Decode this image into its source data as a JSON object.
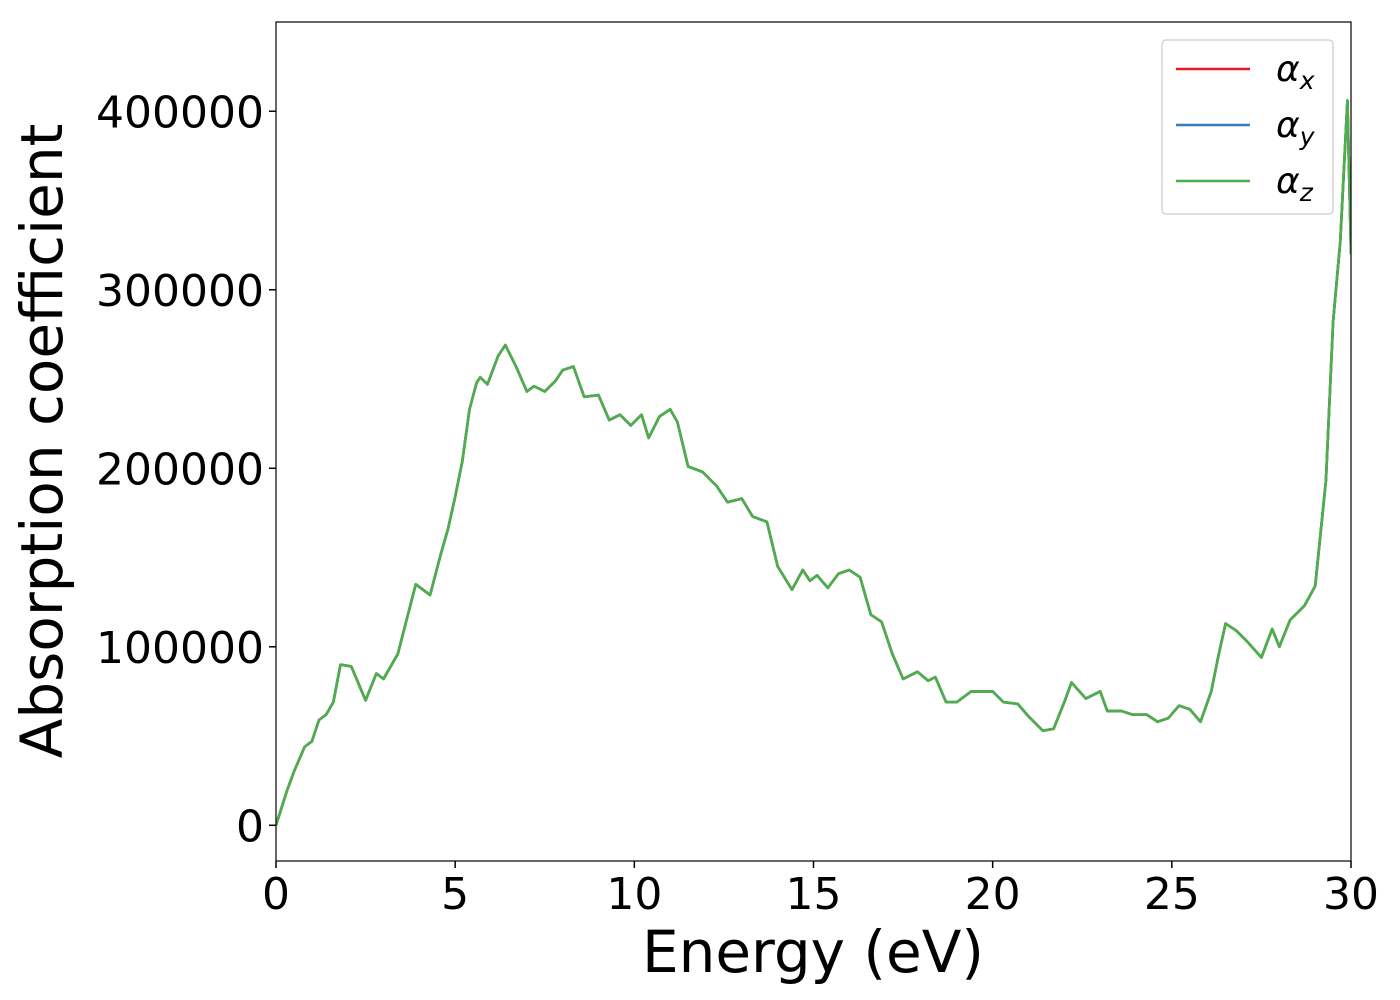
{
  "chart_data": {
    "type": "line",
    "xlabel": "Energy (eV)",
    "ylabel": "Absorption coefficient",
    "xlim": [
      0,
      30
    ],
    "ylim": [
      -20000,
      450000
    ],
    "xticks": [
      0,
      5,
      10,
      15,
      20,
      25,
      30
    ],
    "yticks": [
      0,
      100000,
      200000,
      300000,
      400000
    ],
    "legend": "upper right",
    "x": [
      0,
      0.3,
      0.5,
      0.8,
      1.0,
      1.2,
      1.4,
      1.6,
      1.8,
      2.1,
      2.5,
      2.8,
      3.0,
      3.4,
      3.9,
      4.1,
      4.3,
      4.6,
      4.8,
      5.0,
      5.2,
      5.4,
      5.6,
      5.7,
      5.9,
      6.2,
      6.4,
      6.7,
      7.0,
      7.2,
      7.5,
      7.8,
      8.0,
      8.3,
      8.6,
      9.0,
      9.3,
      9.6,
      9.9,
      10.2,
      10.4,
      10.7,
      11.0,
      11.2,
      11.5,
      11.9,
      12.3,
      12.6,
      13.0,
      13.3,
      13.7,
      14.0,
      14.4,
      14.7,
      14.9,
      15.1,
      15.4,
      15.7,
      16.0,
      16.3,
      16.6,
      16.9,
      17.2,
      17.5,
      17.9,
      18.2,
      18.4,
      18.7,
      19.0,
      19.4,
      19.7,
      20.0,
      20.3,
      20.7,
      21.0,
      21.4,
      21.7,
      22.0,
      22.2,
      22.6,
      23.0,
      23.2,
      23.6,
      23.9,
      24.3,
      24.6,
      24.9,
      25.2,
      25.5,
      25.8,
      26.1,
      26.3,
      26.5,
      26.8,
      27.1,
      27.5,
      27.8,
      28.0,
      28.3,
      28.7,
      29.0,
      29.3,
      29.5,
      29.7,
      29.9,
      30.0
    ],
    "series": [
      {
        "name": "αx",
        "color": "#e41a1c",
        "values": [
          0,
          19000,
          30000,
          44000,
          47000,
          59000,
          62000,
          69000,
          90000,
          89000,
          70000,
          85000,
          82000,
          96000,
          135000,
          132000,
          129000,
          152000,
          166000,
          184000,
          204000,
          233000,
          248000,
          251000,
          247000,
          263000,
          269000,
          257000,
          243000,
          246000,
          243000,
          249000,
          255000,
          257000,
          240000,
          241000,
          227000,
          230000,
          224000,
          230000,
          217000,
          229000,
          233000,
          226000,
          201000,
          198000,
          190000,
          181000,
          183000,
          173000,
          170000,
          145000,
          132000,
          143000,
          137000,
          140000,
          133000,
          141000,
          143000,
          139000,
          118000,
          114000,
          96000,
          82000,
          86000,
          81000,
          83000,
          69000,
          69000,
          75000,
          75000,
          75000,
          69000,
          68000,
          61000,
          53000,
          54000,
          69000,
          80000,
          71000,
          75000,
          64000,
          64000,
          62000,
          62000,
          58000,
          60000,
          67000,
          65000,
          58000,
          75000,
          95000,
          113000,
          109000,
          103000,
          94000,
          110000,
          100000,
          115000,
          123000,
          134000,
          193000,
          282000,
          327000,
          406000,
          320000
        ]
      },
      {
        "name": "αy",
        "color": "#377eb8",
        "values": [
          0,
          19000,
          30000,
          44000,
          47000,
          59000,
          62000,
          69000,
          90000,
          89000,
          70000,
          85000,
          82000,
          96000,
          135000,
          132000,
          129000,
          152000,
          166000,
          184000,
          204000,
          233000,
          248000,
          251000,
          247000,
          263000,
          269000,
          257000,
          243000,
          246000,
          243000,
          249000,
          255000,
          257000,
          240000,
          241000,
          227000,
          230000,
          224000,
          230000,
          217000,
          229000,
          233000,
          226000,
          201000,
          198000,
          190000,
          181000,
          183000,
          173000,
          170000,
          145000,
          132000,
          143000,
          137000,
          140000,
          133000,
          141000,
          143000,
          139000,
          118000,
          114000,
          96000,
          82000,
          86000,
          81000,
          83000,
          69000,
          69000,
          75000,
          75000,
          75000,
          69000,
          68000,
          61000,
          53000,
          54000,
          69000,
          80000,
          71000,
          75000,
          64000,
          64000,
          62000,
          62000,
          58000,
          60000,
          67000,
          65000,
          58000,
          75000,
          95000,
          113000,
          109000,
          103000,
          94000,
          110000,
          100000,
          115000,
          123000,
          134000,
          193000,
          282000,
          327000,
          406000,
          320000
        ]
      },
      {
        "name": "αz",
        "color": "#4daf4a",
        "values": [
          0,
          19000,
          30000,
          44000,
          47000,
          59000,
          62000,
          69000,
          90000,
          89000,
          70000,
          85000,
          82000,
          96000,
          135000,
          132000,
          129000,
          152000,
          166000,
          184000,
          204000,
          233000,
          248000,
          251000,
          247000,
          263000,
          269000,
          257000,
          243000,
          246000,
          243000,
          249000,
          255000,
          257000,
          240000,
          241000,
          227000,
          230000,
          224000,
          230000,
          217000,
          229000,
          233000,
          226000,
          201000,
          198000,
          190000,
          181000,
          183000,
          173000,
          170000,
          145000,
          132000,
          143000,
          137000,
          140000,
          133000,
          141000,
          143000,
          139000,
          118000,
          114000,
          96000,
          82000,
          86000,
          81000,
          83000,
          69000,
          69000,
          75000,
          75000,
          75000,
          69000,
          68000,
          61000,
          53000,
          54000,
          69000,
          80000,
          71000,
          75000,
          64000,
          64000,
          62000,
          62000,
          58000,
          60000,
          67000,
          65000,
          58000,
          75000,
          95000,
          113000,
          109000,
          103000,
          94000,
          110000,
          100000,
          115000,
          123000,
          134000,
          193000,
          282000,
          327000,
          406000,
          320000
        ]
      }
    ]
  }
}
